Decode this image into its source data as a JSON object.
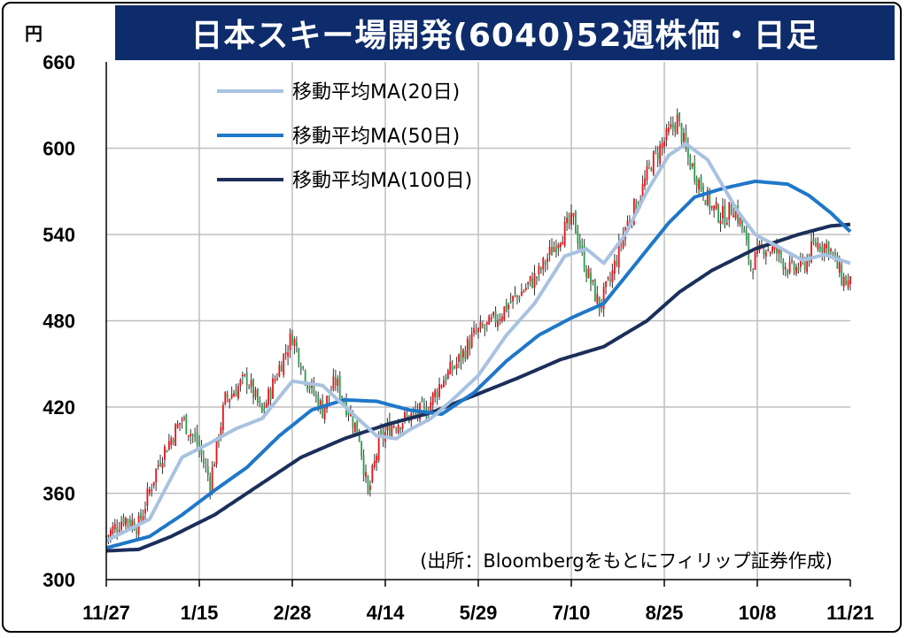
{
  "title": "日本スキー場開発(6040)52週株価・日足",
  "unit": "円",
  "source_note": "(出所：Bloombergをもとにフィリップ証券作成)",
  "colors": {
    "up": "#e8141b",
    "down": "#2e9e4f",
    "ma20": "#a8c2e0",
    "ma50": "#1f78c8",
    "ma100": "#1b2f5a",
    "title_bg": "#0e2c6b",
    "grid": "#bfbfbf"
  },
  "chart_data": {
    "type": "candlestick",
    "title": "日本スキー場開発(6040)52週株価・日足",
    "ylabel": "円",
    "ylim": [
      300,
      660
    ],
    "yticks": [
      300,
      360,
      420,
      480,
      540,
      600,
      660
    ],
    "xticks": [
      "11/27",
      "1/15",
      "2/28",
      "4/14",
      "5/29",
      "7/10",
      "8/25",
      "10/8",
      "11/21"
    ],
    "grid": true,
    "legend_position": "top-left",
    "legend": [
      "移動平均MA(20日)",
      "移動平均MA(50日)",
      "移動平均MA(100日)"
    ],
    "price_anchors": [
      [
        0,
        330
      ],
      [
        8,
        343
      ],
      [
        15,
        338
      ],
      [
        20,
        362
      ],
      [
        25,
        385
      ],
      [
        35,
        412
      ],
      [
        42,
        395
      ],
      [
        48,
        368
      ],
      [
        55,
        425
      ],
      [
        65,
        440
      ],
      [
        72,
        415
      ],
      [
        80,
        448
      ],
      [
        86,
        470
      ],
      [
        93,
        438
      ],
      [
        100,
        418
      ],
      [
        106,
        438
      ],
      [
        112,
        418
      ],
      [
        117,
        400
      ],
      [
        121,
        358
      ],
      [
        126,
        395
      ],
      [
        132,
        408
      ],
      [
        140,
        413
      ],
      [
        148,
        418
      ],
      [
        155,
        438
      ],
      [
        162,
        450
      ],
      [
        170,
        470
      ],
      [
        178,
        478
      ],
      [
        185,
        490
      ],
      [
        192,
        500
      ],
      [
        200,
        513
      ],
      [
        210,
        540
      ],
      [
        216,
        550
      ],
      [
        222,
        515
      ],
      [
        228,
        490
      ],
      [
        233,
        508
      ],
      [
        240,
        545
      ],
      [
        247,
        568
      ],
      [
        252,
        590
      ],
      [
        258,
        605
      ],
      [
        264,
        620
      ],
      [
        269,
        593
      ],
      [
        273,
        580
      ],
      [
        280,
        558
      ],
      [
        286,
        552
      ],
      [
        290,
        560
      ],
      [
        294,
        545
      ],
      [
        298,
        518
      ],
      [
        304,
        532
      ],
      [
        310,
        528
      ],
      [
        316,
        515
      ],
      [
        322,
        518
      ],
      [
        328,
        534
      ],
      [
        334,
        532
      ],
      [
        340,
        510
      ],
      [
        344,
        505
      ]
    ],
    "ma20_anchors": [
      [
        0,
        327
      ],
      [
        20,
        342
      ],
      [
        35,
        385
      ],
      [
        48,
        395
      ],
      [
        60,
        405
      ],
      [
        72,
        412
      ],
      [
        86,
        438
      ],
      [
        100,
        435
      ],
      [
        112,
        418
      ],
      [
        125,
        400
      ],
      [
        134,
        398
      ],
      [
        140,
        404
      ],
      [
        150,
        412
      ],
      [
        160,
        425
      ],
      [
        172,
        442
      ],
      [
        185,
        470
      ],
      [
        198,
        492
      ],
      [
        212,
        525
      ],
      [
        222,
        530
      ],
      [
        230,
        520
      ],
      [
        240,
        540
      ],
      [
        250,
        570
      ],
      [
        260,
        595
      ],
      [
        268,
        603
      ],
      [
        278,
        592
      ],
      [
        285,
        574
      ],
      [
        292,
        556
      ],
      [
        300,
        540
      ],
      [
        310,
        532
      ],
      [
        322,
        522
      ],
      [
        332,
        526
      ],
      [
        344,
        520
      ]
    ],
    "ma50_anchors": [
      [
        0,
        322
      ],
      [
        20,
        330
      ],
      [
        35,
        345
      ],
      [
        50,
        362
      ],
      [
        65,
        378
      ],
      [
        80,
        400
      ],
      [
        95,
        418
      ],
      [
        110,
        425
      ],
      [
        125,
        424
      ],
      [
        140,
        418
      ],
      [
        155,
        415
      ],
      [
        170,
        430
      ],
      [
        185,
        452
      ],
      [
        200,
        470
      ],
      [
        215,
        482
      ],
      [
        230,
        492
      ],
      [
        245,
        520
      ],
      [
        260,
        548
      ],
      [
        272,
        566
      ],
      [
        285,
        572
      ],
      [
        300,
        577
      ],
      [
        315,
        575
      ],
      [
        325,
        567
      ],
      [
        335,
        555
      ],
      [
        344,
        542
      ]
    ],
    "ma100_anchors": [
      [
        0,
        320
      ],
      [
        15,
        321
      ],
      [
        30,
        330
      ],
      [
        50,
        345
      ],
      [
        70,
        365
      ],
      [
        90,
        385
      ],
      [
        110,
        398
      ],
      [
        130,
        408
      ],
      [
        150,
        416
      ],
      [
        170,
        428
      ],
      [
        190,
        440
      ],
      [
        210,
        453
      ],
      [
        230,
        462
      ],
      [
        250,
        480
      ],
      [
        265,
        500
      ],
      [
        280,
        515
      ],
      [
        300,
        530
      ],
      [
        320,
        540
      ],
      [
        335,
        546
      ],
      [
        344,
        547
      ]
    ],
    "n_days": 345
  }
}
